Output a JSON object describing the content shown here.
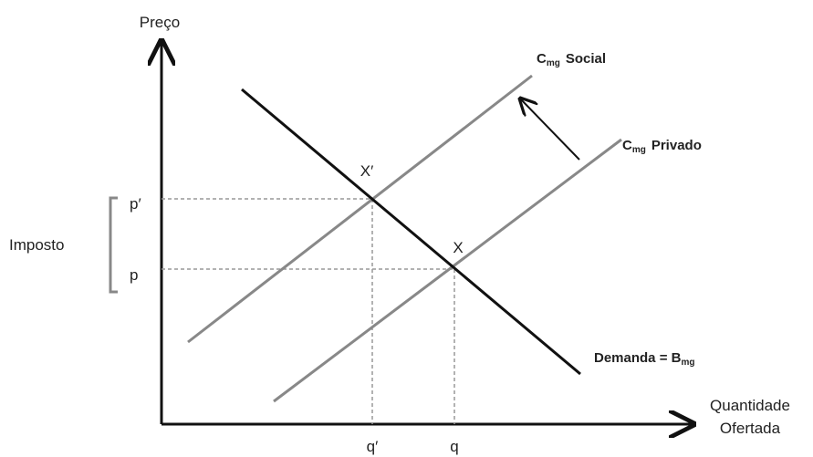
{
  "axes": {
    "y_label": "Preço",
    "x_label": [
      "Quantidade",
      "Ofertada"
    ]
  },
  "curves": {
    "social": {
      "symbol": "C",
      "subscript": "mg",
      "name": "Social"
    },
    "private": {
      "symbol": "C",
      "subscript": "mg",
      "name": "Privado"
    },
    "demand": {
      "name": "Demanda = B",
      "subscript": "mg"
    }
  },
  "points": {
    "x_prime": "X′",
    "x": "X"
  },
  "prices": [
    "p′",
    "p"
  ],
  "quantities": [
    "q′",
    "q"
  ],
  "bracket": "Imposto"
}
